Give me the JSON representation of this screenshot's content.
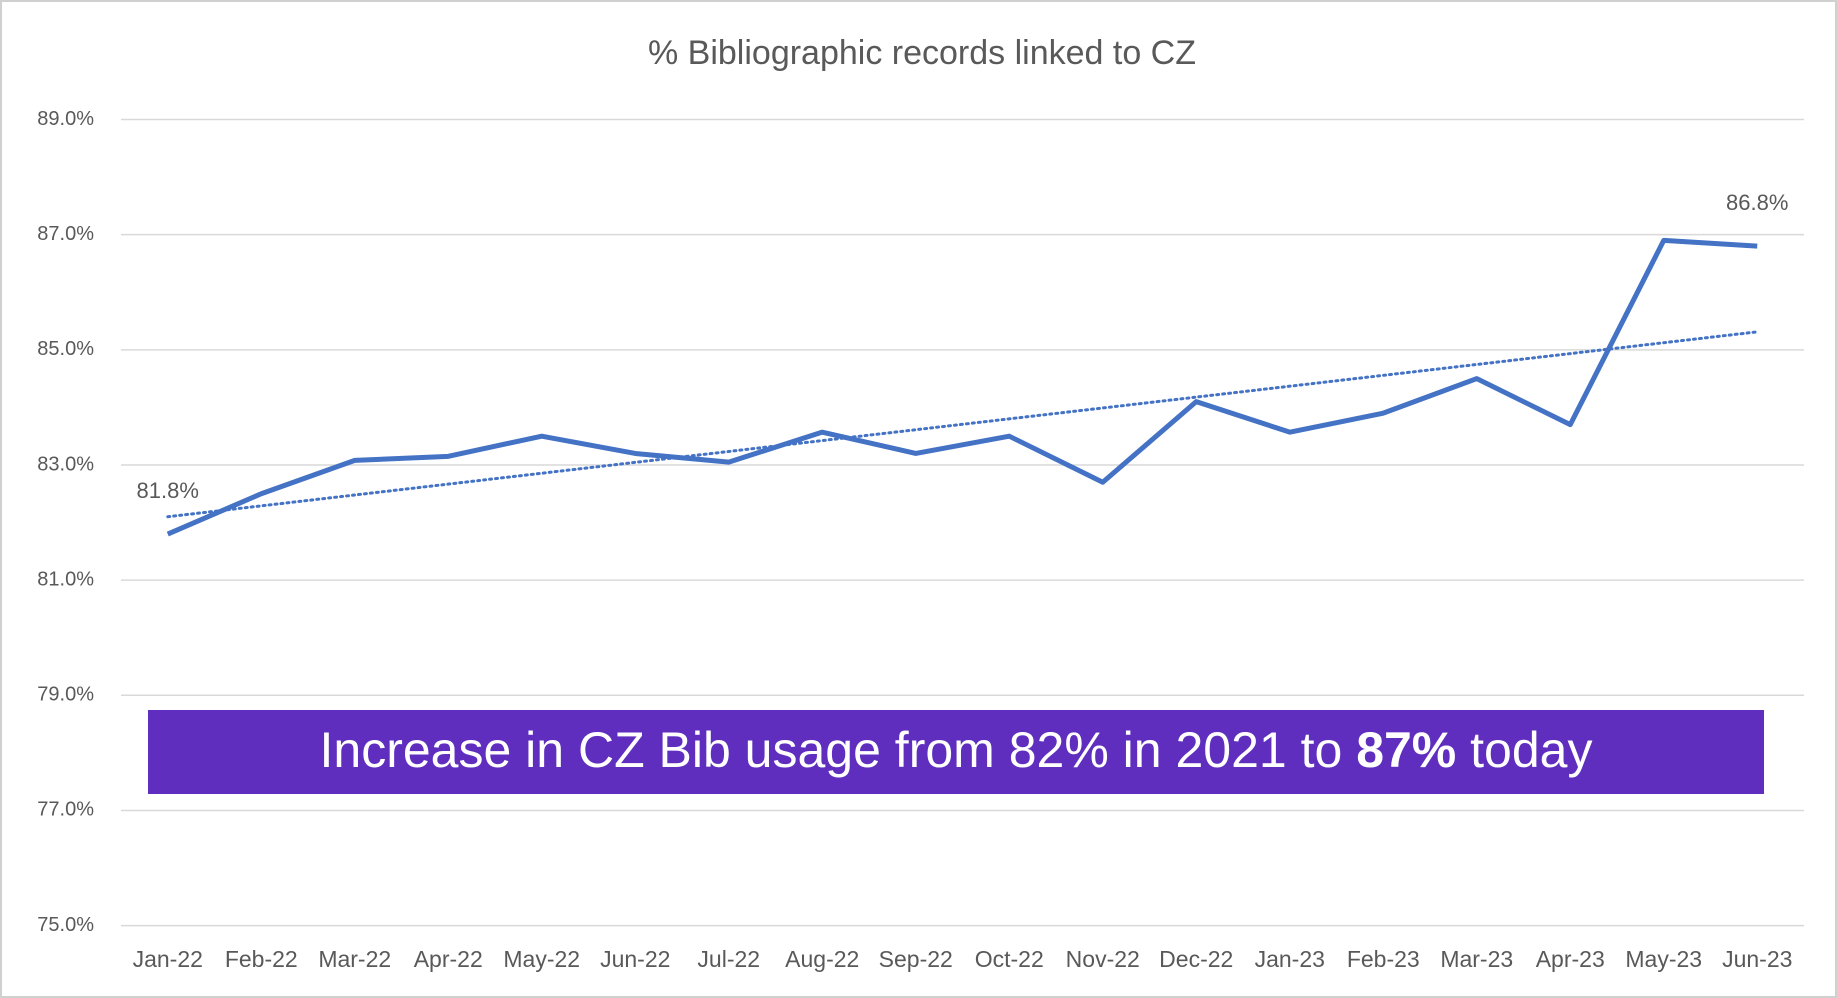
{
  "chart_data": {
    "type": "line",
    "title": "% Bibliographic records linked to CZ",
    "categories": [
      "Jan-22",
      "Feb-22",
      "Mar-22",
      "Apr-22",
      "May-22",
      "Jun-22",
      "Jul-22",
      "Aug-22",
      "Sep-22",
      "Oct-22",
      "Nov-22",
      "Dec-22",
      "Jan-23",
      "Feb-23",
      "Mar-23",
      "Apr-23",
      "May-23",
      "Jun-23"
    ],
    "series": [
      {
        "color": "#4472c4",
        "values": [
          81.8,
          82.5,
          83.08,
          83.15,
          83.5,
          83.2,
          83.05,
          83.57,
          83.2,
          83.5,
          82.7,
          84.1,
          83.57,
          83.9,
          84.5,
          83.7,
          86.9,
          86.8
        ],
        "value_labels": [
          "81.8%",
          null,
          null,
          null,
          null,
          null,
          null,
          null,
          null,
          null,
          null,
          null,
          null,
          null,
          null,
          null,
          null,
          "86.8%"
        ]
      }
    ],
    "trendline": true,
    "ylim": [
      75,
      89
    ],
    "yticks": [
      {
        "value": 75,
        "label": "75.0%"
      },
      {
        "value": 77,
        "label": "77.0%"
      },
      {
        "value": 79,
        "label": "79.0%"
      },
      {
        "value": 81,
        "label": "81.0%"
      },
      {
        "value": 83,
        "label": "83.0%"
      },
      {
        "value": 85,
        "label": "85.0%"
      },
      {
        "value": 87,
        "label": "87.0%"
      },
      {
        "value": 89,
        "label": "89.0%"
      }
    ],
    "grid": true,
    "annotation": {
      "color": "#5f2ebf",
      "parts": [
        "Increase in CZ Bib usage from 82% in 2021 to ",
        "87%",
        " today"
      ]
    }
  }
}
